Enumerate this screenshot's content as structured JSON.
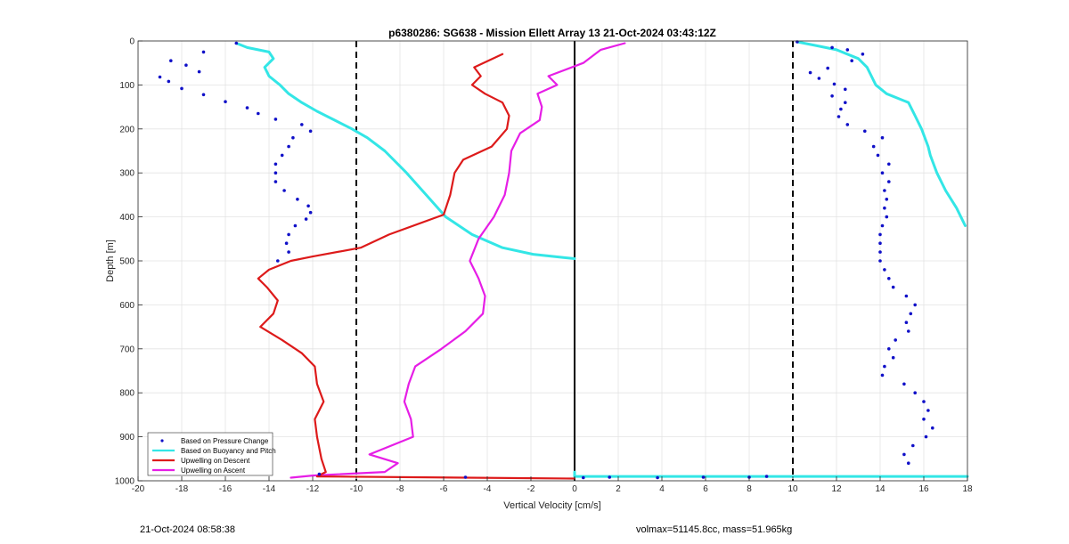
{
  "footer": {
    "timestamp": "21-Oct-2024 08:58:38",
    "volmax_mass": "volmax=51145.8cc, mass=51.965kg"
  },
  "colors": {
    "pressure": "#1010c8",
    "buoyancy": "#33e6e6",
    "descent": "#dd1a1a",
    "ascent": "#e61ee6",
    "grid": "#e3e3e3",
    "axis": "#262626"
  },
  "chart_data": {
    "type": "scatter",
    "title": "p6380286: SG638 - Mission Ellett Array 13 21-Oct-2024 03:43:12Z",
    "xlabel": "Vertical Velocity [cm/s]",
    "ylabel": "Depth [m]",
    "xlim": [
      -20,
      18
    ],
    "ylim": [
      0,
      1000
    ],
    "y_reversed": true,
    "grid": true,
    "xticks": [
      -20,
      -18,
      -16,
      -14,
      -12,
      -10,
      -8,
      -6,
      -4,
      -2,
      0,
      2,
      4,
      6,
      8,
      10,
      12,
      14,
      16,
      18
    ],
    "yticks": [
      0,
      100,
      200,
      300,
      400,
      500,
      600,
      700,
      800,
      900,
      1000
    ],
    "reference_lines": [
      {
        "x": -10,
        "style": "dashed"
      },
      {
        "x": 10,
        "style": "dashed"
      },
      {
        "x": 0,
        "style": "solid"
      }
    ],
    "legend_position": "bottom-left",
    "legend": [
      {
        "label": "Based on Pressure Change",
        "marker": "dot",
        "color": "#1010c8"
      },
      {
        "label": "Based on Buoyancy and Pitch",
        "marker": "line",
        "color": "#33e6e6"
      },
      {
        "label": "Upwelling on Descent",
        "marker": "line",
        "color": "#dd1a1a"
      },
      {
        "label": "Upwelling on Ascent",
        "marker": "line",
        "color": "#e61ee6"
      }
    ],
    "series": [
      {
        "name": "Based on Pressure Change",
        "type": "scatter",
        "points": [
          [
            -15.5,
            5
          ],
          [
            -17,
            25
          ],
          [
            -18.5,
            45
          ],
          [
            -17.8,
            55
          ],
          [
            -17.2,
            70
          ],
          [
            -19,
            82
          ],
          [
            -18.6,
            92
          ],
          [
            -18,
            108
          ],
          [
            -17,
            122
          ],
          [
            -16,
            138
          ],
          [
            -15,
            152
          ],
          [
            -14.5,
            165
          ],
          [
            -13.7,
            178
          ],
          [
            -12.5,
            190
          ],
          [
            -12.1,
            205
          ],
          [
            -12.9,
            220
          ],
          [
            -13.1,
            240
          ],
          [
            -13.4,
            260
          ],
          [
            -13.7,
            280
          ],
          [
            -13.7,
            300
          ],
          [
            -13.7,
            320
          ],
          [
            -13.3,
            340
          ],
          [
            -12.7,
            360
          ],
          [
            -12.2,
            375
          ],
          [
            -12.1,
            390
          ],
          [
            -12.3,
            405
          ],
          [
            -12.8,
            420
          ],
          [
            -13.1,
            440
          ],
          [
            -13.2,
            460
          ],
          [
            -13.1,
            480
          ],
          [
            -13.6,
            500
          ],
          [
            -11.7,
            985
          ],
          [
            -5,
            992
          ],
          [
            0.4,
            993
          ],
          [
            1.6,
            992
          ],
          [
            3.8,
            993
          ],
          [
            5.9,
            992
          ],
          [
            8,
            992
          ],
          [
            8.8,
            990
          ],
          [
            10.2,
            2
          ],
          [
            11.8,
            15
          ],
          [
            12.5,
            20
          ],
          [
            13.2,
            30
          ],
          [
            12.7,
            45
          ],
          [
            11.6,
            62
          ],
          [
            10.8,
            72
          ],
          [
            11.2,
            85
          ],
          [
            11.9,
            98
          ],
          [
            12.4,
            110
          ],
          [
            11.8,
            125
          ],
          [
            12.4,
            140
          ],
          [
            12.2,
            155
          ],
          [
            12.1,
            172
          ],
          [
            12.5,
            190
          ],
          [
            13.3,
            205
          ],
          [
            14.1,
            220
          ],
          [
            13.7,
            240
          ],
          [
            13.9,
            260
          ],
          [
            14.4,
            280
          ],
          [
            14.1,
            300
          ],
          [
            14.4,
            320
          ],
          [
            14.2,
            340
          ],
          [
            14.3,
            360
          ],
          [
            14.2,
            380
          ],
          [
            14.3,
            400
          ],
          [
            14.1,
            420
          ],
          [
            14,
            440
          ],
          [
            14,
            460
          ],
          [
            14,
            480
          ],
          [
            14,
            500
          ],
          [
            14.2,
            520
          ],
          [
            14.4,
            540
          ],
          [
            14.6,
            560
          ],
          [
            15.2,
            580
          ],
          [
            15.6,
            600
          ],
          [
            15.4,
            620
          ],
          [
            15.2,
            640
          ],
          [
            15.3,
            660
          ],
          [
            14.7,
            680
          ],
          [
            14.4,
            700
          ],
          [
            14.6,
            720
          ],
          [
            14.2,
            740
          ],
          [
            14.1,
            760
          ],
          [
            15.1,
            780
          ],
          [
            15.6,
            800
          ],
          [
            16,
            820
          ],
          [
            16.2,
            840
          ],
          [
            16,
            860
          ],
          [
            16.4,
            880
          ],
          [
            16.1,
            900
          ],
          [
            15.5,
            920
          ],
          [
            15.1,
            940
          ],
          [
            15.3,
            960
          ]
        ]
      },
      {
        "name": "Based on Buoyancy and Pitch",
        "type": "line",
        "points": [
          [
            -15.5,
            5
          ],
          [
            -15,
            15
          ],
          [
            -14,
            25
          ],
          [
            -13.8,
            40
          ],
          [
            -14.2,
            60
          ],
          [
            -14,
            80
          ],
          [
            -13.5,
            100
          ],
          [
            -13.1,
            120
          ],
          [
            -12.5,
            140
          ],
          [
            -11.8,
            160
          ],
          [
            -11,
            180
          ],
          [
            -10.2,
            200
          ],
          [
            -9.5,
            220
          ],
          [
            -8.7,
            250
          ],
          [
            -7.7,
            300
          ],
          [
            -6.8,
            350
          ],
          [
            -5.9,
            400
          ],
          [
            -4.7,
            440
          ],
          [
            -3.3,
            470
          ],
          [
            -1.9,
            485
          ],
          [
            -0.6,
            492
          ],
          [
            0,
            495
          ],
          [
            0,
            980
          ],
          [
            0,
            990
          ],
          [
            18,
            990
          ],
          [
            10.2,
            2
          ],
          [
            11,
            10
          ],
          [
            12,
            20
          ],
          [
            13,
            40
          ],
          [
            13.4,
            60
          ],
          [
            13.6,
            80
          ],
          [
            13.8,
            100
          ],
          [
            14.3,
            120
          ],
          [
            15.3,
            140
          ],
          [
            15.6,
            170
          ],
          [
            15.9,
            200
          ],
          [
            16.2,
            240
          ],
          [
            16.3,
            260
          ],
          [
            16.6,
            300
          ],
          [
            17,
            340
          ],
          [
            17.5,
            380
          ],
          [
            17.9,
            420
          ]
        ]
      },
      {
        "name": "Upwelling on Descent",
        "type": "line",
        "points": [
          [
            -3.3,
            30
          ],
          [
            -4.6,
            60
          ],
          [
            -4.3,
            80
          ],
          [
            -4.7,
            100
          ],
          [
            -4.1,
            120
          ],
          [
            -3.3,
            140
          ],
          [
            -3.0,
            170
          ],
          [
            -3.1,
            200
          ],
          [
            -3.8,
            240
          ],
          [
            -5.1,
            270
          ],
          [
            -5.5,
            300
          ],
          [
            -5.7,
            350
          ],
          [
            -6.0,
            395
          ],
          [
            -8.5,
            440
          ],
          [
            -9.8,
            470
          ],
          [
            -12.0,
            490
          ],
          [
            -13.0,
            500
          ],
          [
            -14.0,
            520
          ],
          [
            -14.5,
            540
          ],
          [
            -14.1,
            560
          ],
          [
            -13.6,
            590
          ],
          [
            -13.8,
            620
          ],
          [
            -14.4,
            650
          ],
          [
            -13.4,
            680
          ],
          [
            -12.5,
            710
          ],
          [
            -11.9,
            740
          ],
          [
            -11.8,
            780
          ],
          [
            -11.5,
            820
          ],
          [
            -11.9,
            860
          ],
          [
            -11.8,
            900
          ],
          [
            -11.6,
            950
          ],
          [
            -11.4,
            980
          ],
          [
            -11.8,
            990
          ],
          [
            0,
            995
          ]
        ]
      },
      {
        "name": "Upwelling on Ascent",
        "type": "line",
        "points": [
          [
            2.3,
            5
          ],
          [
            1.2,
            20
          ],
          [
            0.4,
            50
          ],
          [
            -1.2,
            80
          ],
          [
            -0.8,
            100
          ],
          [
            -1.7,
            120
          ],
          [
            -1.5,
            150
          ],
          [
            -1.6,
            180
          ],
          [
            -2.5,
            210
          ],
          [
            -2.9,
            250
          ],
          [
            -3.0,
            300
          ],
          [
            -3.2,
            350
          ],
          [
            -3.7,
            400
          ],
          [
            -4.4,
            450
          ],
          [
            -4.8,
            500
          ],
          [
            -4.4,
            540
          ],
          [
            -4.1,
            580
          ],
          [
            -4.2,
            620
          ],
          [
            -5.0,
            660
          ],
          [
            -6.1,
            700
          ],
          [
            -7.3,
            740
          ],
          [
            -7.6,
            780
          ],
          [
            -7.8,
            820
          ],
          [
            -7.5,
            860
          ],
          [
            -7.4,
            900
          ],
          [
            -9.4,
            940
          ],
          [
            -8.1,
            960
          ],
          [
            -8.7,
            980
          ],
          [
            -12.0,
            988
          ],
          [
            -13.0,
            993
          ]
        ]
      }
    ]
  }
}
